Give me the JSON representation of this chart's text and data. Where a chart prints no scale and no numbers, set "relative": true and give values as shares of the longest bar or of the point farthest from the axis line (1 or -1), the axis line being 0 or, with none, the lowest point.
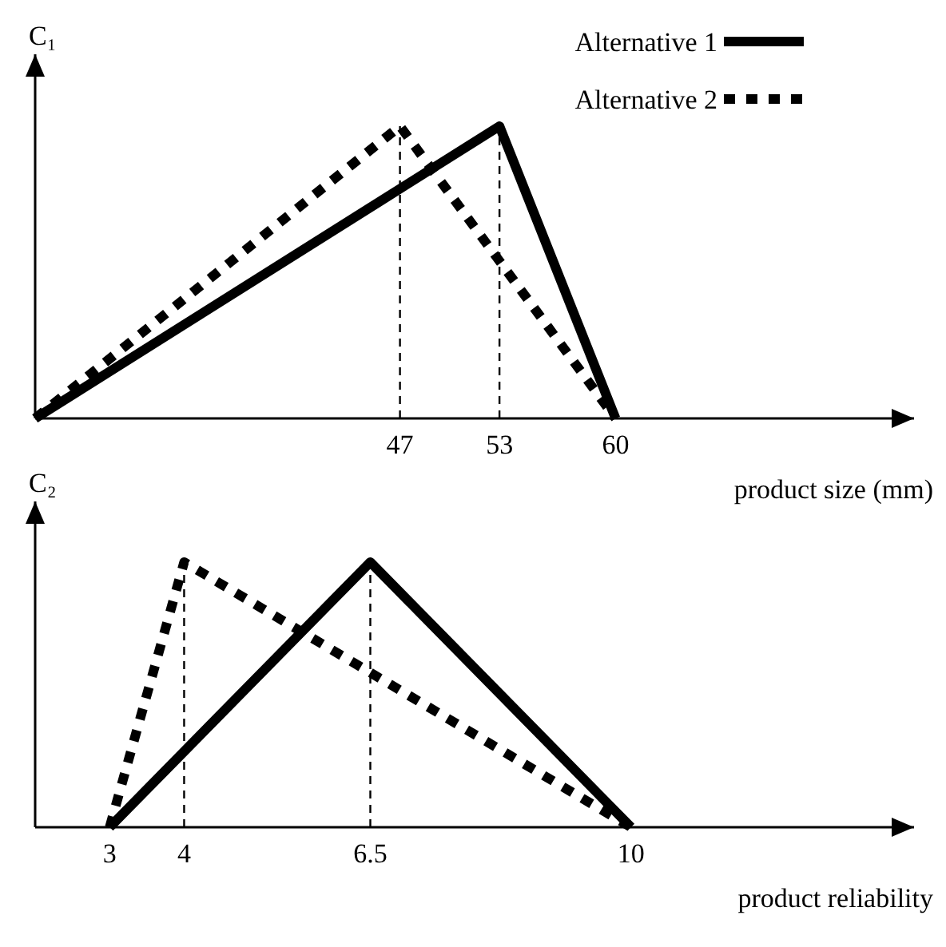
{
  "chart_data": [
    {
      "type": "line",
      "ylabel": "C₁",
      "xlabel": "product size (mm)",
      "relative": true,
      "xlim": [
        25,
        78
      ],
      "xticks": [
        47,
        53,
        60
      ],
      "legend": "top right",
      "tick_labels": "x",
      "series": [
        {
          "name": "Alternative 1",
          "color": "#000000",
          "line_style": "solid",
          "x": [
            25,
            53,
            60
          ],
          "values": [
            0,
            1,
            0
          ]
        },
        {
          "name": "Alternative 2",
          "color": "#000000",
          "line_style": "dotted",
          "x": [
            25,
            47,
            60
          ],
          "values": [
            0,
            1,
            0
          ]
        }
      ],
      "ref_lines": [
        {
          "axis": "x",
          "value": 47,
          "line_style": "dashed"
        },
        {
          "axis": "x",
          "value": 53,
          "line_style": "dashed"
        }
      ]
    },
    {
      "type": "line",
      "ylabel": "C₂",
      "xlabel": "product reliability",
      "relative": true,
      "xlim": [
        2,
        13.8
      ],
      "xticks": [
        3,
        4,
        6.5,
        10
      ],
      "tick_labels": "x",
      "series": [
        {
          "color": "#000000",
          "line_style": "solid",
          "x": [
            3,
            6.5,
            10
          ],
          "values": [
            0,
            1,
            0
          ]
        },
        {
          "color": "#000000",
          "line_style": "dotted",
          "x": [
            3,
            4,
            10
          ],
          "values": [
            0,
            1,
            0
          ]
        }
      ],
      "ref_lines": [
        {
          "axis": "x",
          "value": 4,
          "line_style": "dashed"
        },
        {
          "axis": "x",
          "value": 6.5,
          "line_style": "dashed"
        }
      ]
    }
  ]
}
